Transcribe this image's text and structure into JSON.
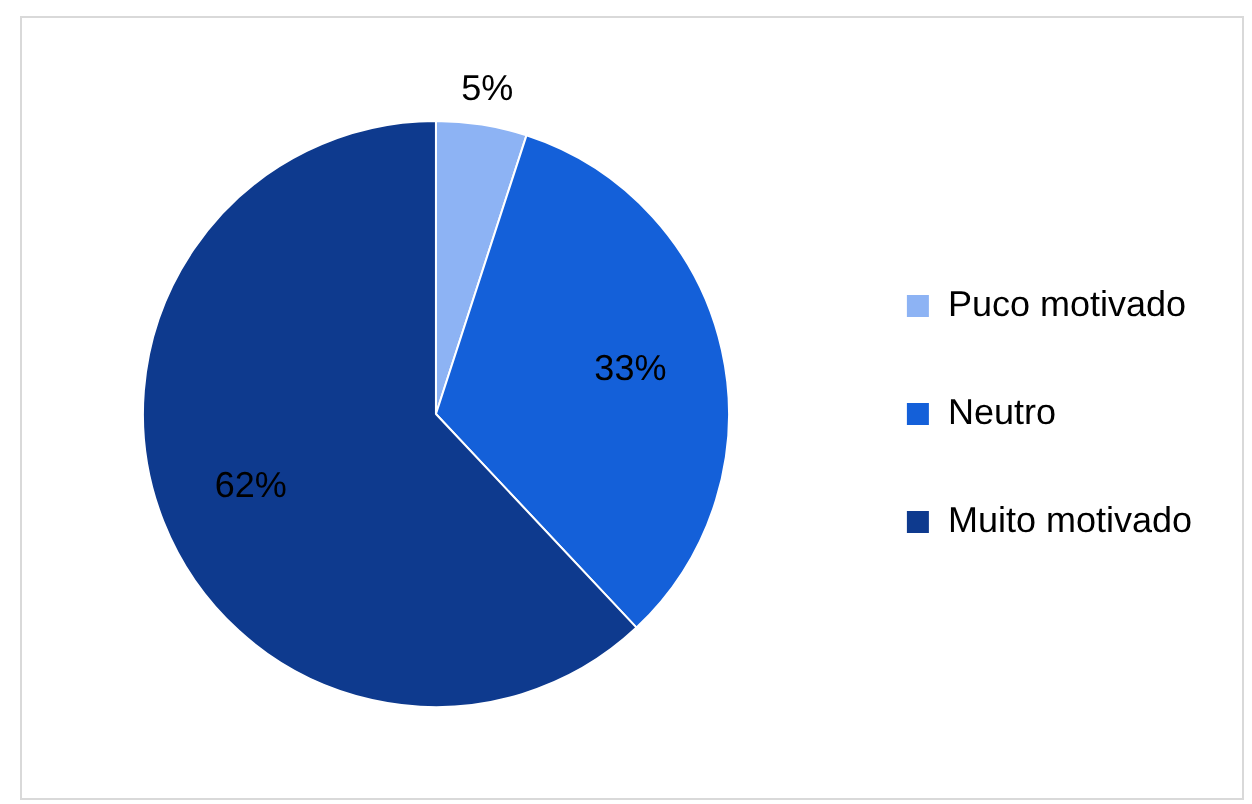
{
  "chart_data": {
    "type": "pie",
    "categories": [
      "Puco motivado",
      "Neutro",
      "Muito motivado"
    ],
    "values": [
      5,
      33,
      62
    ],
    "colors": [
      "#8db3f4",
      "#1460d9",
      "#0e3a8e"
    ],
    "value_labels": [
      "5%",
      "33%",
      "62%"
    ],
    "legend": "right"
  }
}
